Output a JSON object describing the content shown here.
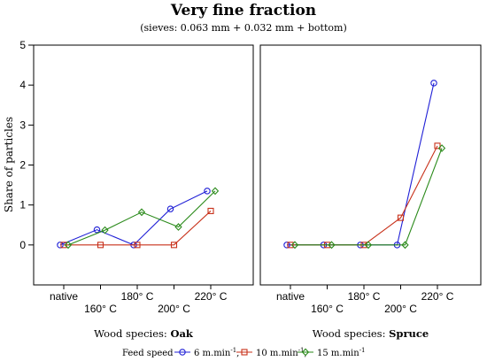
{
  "chart_data": {
    "type": "line",
    "title": "Very fine fraction",
    "subtitle": "(sieves: 0.063 mm + 0.032 mm + bottom)",
    "ylabel": "Share of particles",
    "ylim": [
      -1,
      5
    ],
    "yticks": [
      0,
      1,
      2,
      3,
      4,
      5
    ],
    "categories": [
      "native",
      "160° C",
      "180° C",
      "200° C",
      "220° C"
    ],
    "legend_title": "Feed speed",
    "legend_placement": "bottom",
    "grid": false,
    "series_styles": [
      {
        "label_text": "6 m.min",
        "label_sup": "-1",
        "sep": ",",
        "color": "#1f1fd6",
        "marker": "circle"
      },
      {
        "label_text": "10 m.min",
        "label_sup": "-1",
        "sep": ",",
        "color": "#c8311a",
        "marker": "square"
      },
      {
        "label_text": "15 m.min",
        "label_sup": "-1",
        "sep": "",
        "color": "#2a8a1a",
        "marker": "diamond"
      }
    ],
    "panels": [
      {
        "caption_prefix": "Wood species: ",
        "caption_species": "Oak",
        "series": [
          {
            "values": [
              0.0,
              0.38,
              0.0,
              0.9,
              1.35
            ]
          },
          {
            "values": [
              0.0,
              0.0,
              0.0,
              0.0,
              0.85
            ]
          },
          {
            "values": [
              0.0,
              0.37,
              0.82,
              0.45,
              1.35
            ]
          }
        ]
      },
      {
        "caption_prefix": "Wood species: ",
        "caption_species": "Spruce",
        "series": [
          {
            "values": [
              0.0,
              0.0,
              0.0,
              0.0,
              4.05
            ]
          },
          {
            "values": [
              0.0,
              0.0,
              0.0,
              0.68,
              2.48
            ]
          },
          {
            "values": [
              0.0,
              0.0,
              0.0,
              0.0,
              2.42
            ]
          }
        ]
      }
    ]
  }
}
